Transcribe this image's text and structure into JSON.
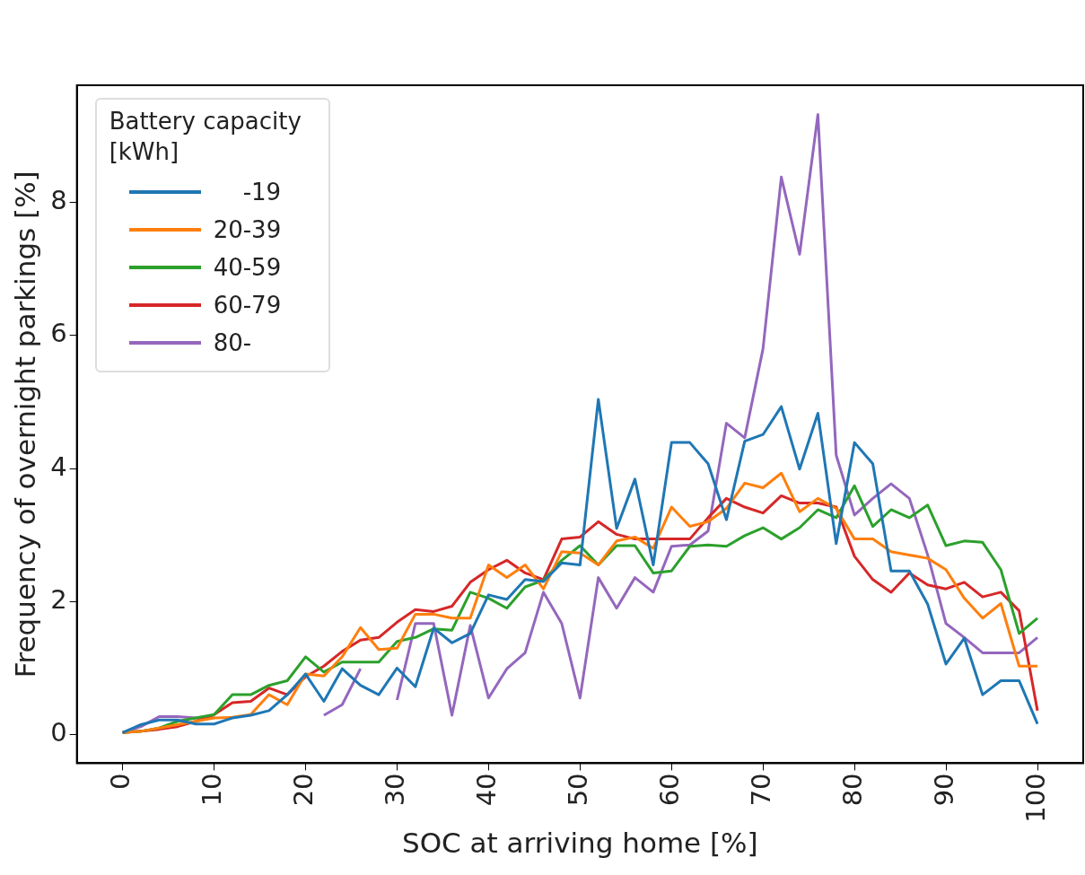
{
  "chart_data": {
    "type": "line",
    "xlabel": "SOC at arriving home [%]",
    "ylabel": "Frequency of overnight parkings [%]",
    "legend_title": "Battery capacity [kWh]",
    "legend": "top left",
    "grid": false,
    "marker": "none",
    "line_style": "solid",
    "x": [
      0,
      2,
      4,
      6,
      8,
      10,
      12,
      14,
      16,
      18,
      20,
      22,
      24,
      26,
      28,
      30,
      32,
      34,
      36,
      38,
      40,
      42,
      44,
      46,
      48,
      50,
      52,
      54,
      56,
      58,
      60,
      62,
      64,
      66,
      68,
      70,
      72,
      74,
      76,
      78,
      80,
      82,
      84,
      86,
      88,
      90,
      92,
      94,
      96,
      98,
      100
    ],
    "xlim": [
      -5,
      105
    ],
    "xticks": [
      0,
      10,
      20,
      30,
      40,
      50,
      60,
      70,
      80,
      90,
      100
    ],
    "ylim": [
      -0.43,
      9.76
    ],
    "yticks": [
      0,
      2,
      4,
      6,
      8
    ],
    "series": [
      {
        "name": "    -19",
        "color": "#1f77b4",
        "values": [
          0.03,
          0.15,
          0.22,
          0.22,
          0.16,
          0.16,
          0.25,
          0.29,
          0.36,
          0.6,
          0.91,
          0.5,
          0.99,
          0.74,
          0.6,
          1.0,
          0.72,
          1.6,
          1.38,
          1.52,
          2.1,
          2.03,
          2.33,
          2.3,
          2.58,
          2.55,
          5.04,
          3.1,
          3.84,
          2.55,
          4.39,
          4.39,
          4.07,
          3.23,
          4.41,
          4.51,
          4.93,
          3.99,
          4.83,
          2.87,
          4.39,
          4.07,
          2.46,
          2.46,
          1.96,
          1.06,
          1.45,
          0.6,
          0.81,
          0.81,
          0.16
        ]
      },
      {
        "name": "20-39",
        "color": "#ff7f0e",
        "values": [
          0.03,
          0.05,
          0.1,
          0.15,
          0.2,
          0.25,
          0.26,
          0.3,
          0.6,
          0.45,
          0.91,
          0.88,
          1.17,
          1.61,
          1.28,
          1.3,
          1.81,
          1.81,
          1.75,
          1.75,
          2.55,
          2.36,
          2.55,
          2.19,
          2.75,
          2.73,
          2.55,
          2.91,
          2.97,
          2.8,
          3.42,
          3.13,
          3.2,
          3.4,
          3.78,
          3.71,
          3.93,
          3.35,
          3.55,
          3.4,
          2.94,
          2.94,
          2.75,
          2.7,
          2.65,
          2.48,
          2.05,
          1.75,
          1.97,
          1.03,
          1.03
        ]
      },
      {
        "name": "40-59",
        "color": "#2ca02c",
        "values": [
          0.03,
          0.05,
          0.1,
          0.2,
          0.25,
          0.3,
          0.6,
          0.6,
          0.74,
          0.81,
          1.17,
          0.94,
          1.09,
          1.09,
          1.09,
          1.4,
          1.46,
          1.59,
          1.57,
          2.14,
          2.05,
          1.9,
          2.22,
          2.32,
          2.62,
          2.84,
          2.55,
          2.84,
          2.84,
          2.43,
          2.46,
          2.83,
          2.85,
          2.83,
          2.99,
          3.11,
          2.94,
          3.11,
          3.38,
          3.26,
          3.74,
          3.13,
          3.38,
          3.26,
          3.45,
          2.84,
          2.91,
          2.89,
          2.48,
          1.52,
          1.75
        ]
      },
      {
        "name": "60-79",
        "color": "#d62728",
        "values": [
          0.03,
          0.05,
          0.08,
          0.12,
          0.2,
          0.3,
          0.48,
          0.5,
          0.7,
          0.6,
          0.87,
          1.03,
          1.25,
          1.42,
          1.46,
          1.69,
          1.88,
          1.85,
          1.93,
          2.29,
          2.48,
          2.62,
          2.43,
          2.33,
          2.94,
          2.97,
          3.2,
          3.01,
          2.94,
          2.94,
          2.94,
          2.94,
          3.26,
          3.55,
          3.42,
          3.33,
          3.59,
          3.48,
          3.48,
          3.42,
          2.68,
          2.33,
          2.14,
          2.43,
          2.25,
          2.19,
          2.29,
          2.07,
          2.14,
          1.86,
          0.36
        ]
      },
      {
        "name": "80-",
        "color": "#9467bd",
        "values": [
          0.03,
          0.12,
          0.27,
          0.27,
          0.25,
          0.25,
          null,
          null,
          null,
          null,
          null,
          0.29,
          0.45,
          0.99,
          null,
          0.52,
          1.67,
          1.67,
          0.29,
          1.64,
          0.55,
          0.99,
          1.23,
          2.14,
          1.67,
          0.55,
          2.36,
          1.9,
          2.36,
          2.14,
          2.83,
          2.85,
          3.06,
          4.68,
          4.46,
          5.8,
          8.38,
          7.22,
          9.32,
          4.2,
          3.3,
          3.55,
          3.77,
          3.55,
          2.7,
          1.67,
          1.46,
          1.23,
          1.23,
          1.23,
          1.46
        ]
      }
    ]
  }
}
